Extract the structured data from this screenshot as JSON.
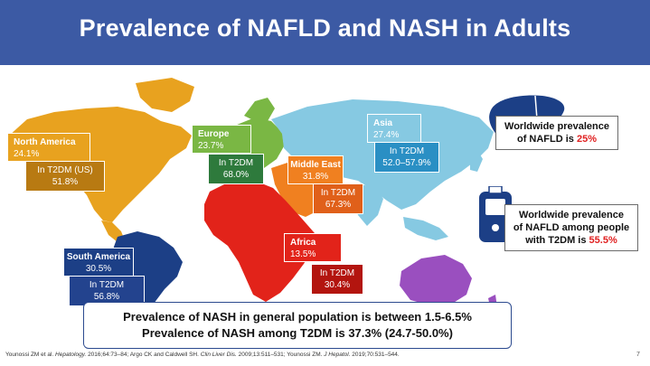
{
  "title": "Prevalence of NAFLD and NASH in Adults",
  "regions": {
    "north_america": {
      "name": "North America",
      "value": "24.1%",
      "t2dm_label": "In T2DM (US)",
      "t2dm_value": "51.8%"
    },
    "europe": {
      "name": "Europe",
      "value": "23.7%",
      "t2dm_label": "In T2DM",
      "t2dm_value": "68.0%"
    },
    "middle_east": {
      "name": "Middle East",
      "value": "31.8%",
      "t2dm_label": "In T2DM",
      "t2dm_value": "67.3%"
    },
    "asia": {
      "name": "Asia",
      "value": "27.4%",
      "t2dm_label": "In T2DM",
      "t2dm_value": "52.0–57.9%"
    },
    "south_america": {
      "name": "South America",
      "value": "30.5%",
      "t2dm_label": "In T2DM",
      "t2dm_value": "56.8%"
    },
    "africa": {
      "name": "Africa",
      "value": "13.5%",
      "t2dm_label": "In T2DM",
      "t2dm_value": "30.4%"
    }
  },
  "facts": {
    "nafld_line1": "Worldwide prevalence",
    "nafld_line2_prefix": "of NAFLD is ",
    "nafld_value": "25%",
    "t2dm_line1": "Worldwide prevalence",
    "t2dm_line2": "of NAFLD among people",
    "t2dm_line3_prefix": "with T2DM is ",
    "t2dm_value": "55.5%"
  },
  "nash": {
    "line1": "Prevalence of NASH in general population is between 1.5-6.5%",
    "line2": "Prevalence of NASH among T2DM is 37.3% (24.7-50.0%)"
  },
  "reference": {
    "p1": "Younossi ZM et al. ",
    "j1": "Hepatology.",
    "p2": " 2016;64:73–84; Argo CK and Caldwell SH. ",
    "j2": "Clin Liver Dis.",
    "p3": " 2009;13:511–531; Younossi ZM. ",
    "j3": "J Hepatol.",
    "p4": " 2019;70:531–544."
  },
  "slide_number": "7",
  "colors": {
    "header": "#3c5aa4",
    "north_america": "#e8a21f",
    "north_america_dark": "#b87a12",
    "europe": "#7ab744",
    "middle_east": "#f08020",
    "middle_east_dark": "#e0601a",
    "asia": "#86c9e2",
    "asia_dark": "#2a8fc4",
    "south_america": "#1c3f86",
    "africa": "#e2231a",
    "australia": "#9a4fbf",
    "highlight": "#e02020"
  },
  "icons": [
    "liver-icon",
    "glucose-meter-icon"
  ]
}
